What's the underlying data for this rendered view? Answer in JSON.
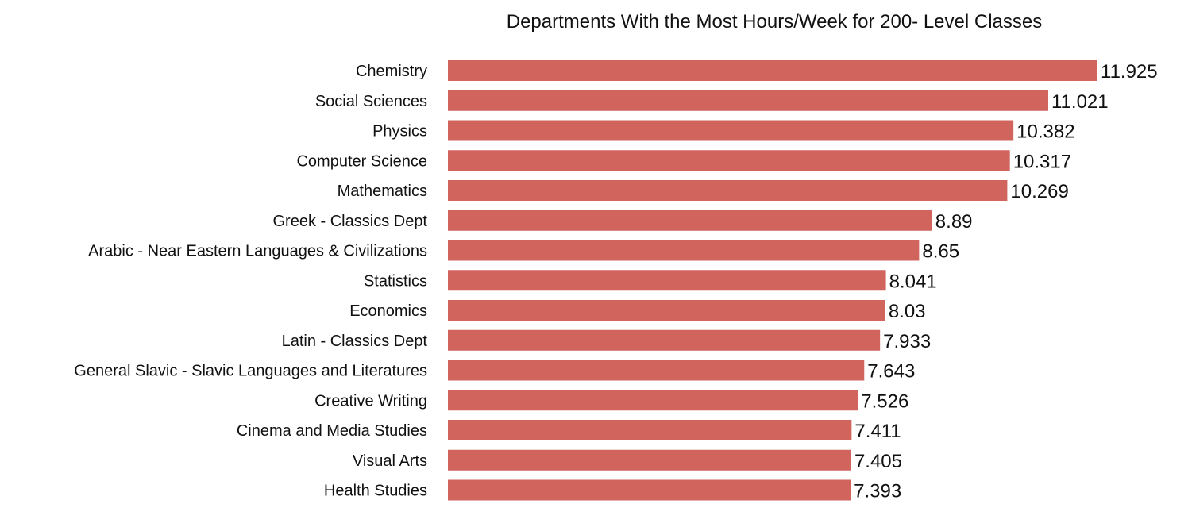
{
  "chart_data": {
    "type": "bar",
    "orientation": "horizontal",
    "title": "Departments With the Most Hours/Week for 200- Level Classes",
    "xlabel": "",
    "ylabel": "",
    "grid": false,
    "legend": "none",
    "bar_color": "#d1645d",
    "xlim": [
      0,
      11.925
    ],
    "categories": [
      "Chemistry",
      "Social Sciences",
      "Physics",
      "Computer Science",
      "Mathematics",
      "Greek - Classics Dept",
      "Arabic - Near Eastern Languages & Civilizations",
      "Statistics",
      "Economics",
      "Latin - Classics  Dept",
      "General Slavic - Slavic Languages and Literatures",
      "Creative Writing",
      "Cinema and Media Studies",
      "Visual Arts",
      "Health Studies"
    ],
    "values": [
      11.925,
      11.021,
      10.382,
      10.317,
      10.269,
      8.89,
      8.65,
      8.041,
      8.03,
      7.933,
      7.643,
      7.526,
      7.411,
      7.405,
      7.393
    ],
    "value_labels": [
      "11.925",
      "11.021",
      "10.382",
      "10.317",
      "10.269",
      "8.89",
      "8.65",
      "8.041",
      "8.03",
      "7.933",
      "7.643",
      "7.526",
      "7.411",
      "7.405",
      "7.393"
    ]
  }
}
